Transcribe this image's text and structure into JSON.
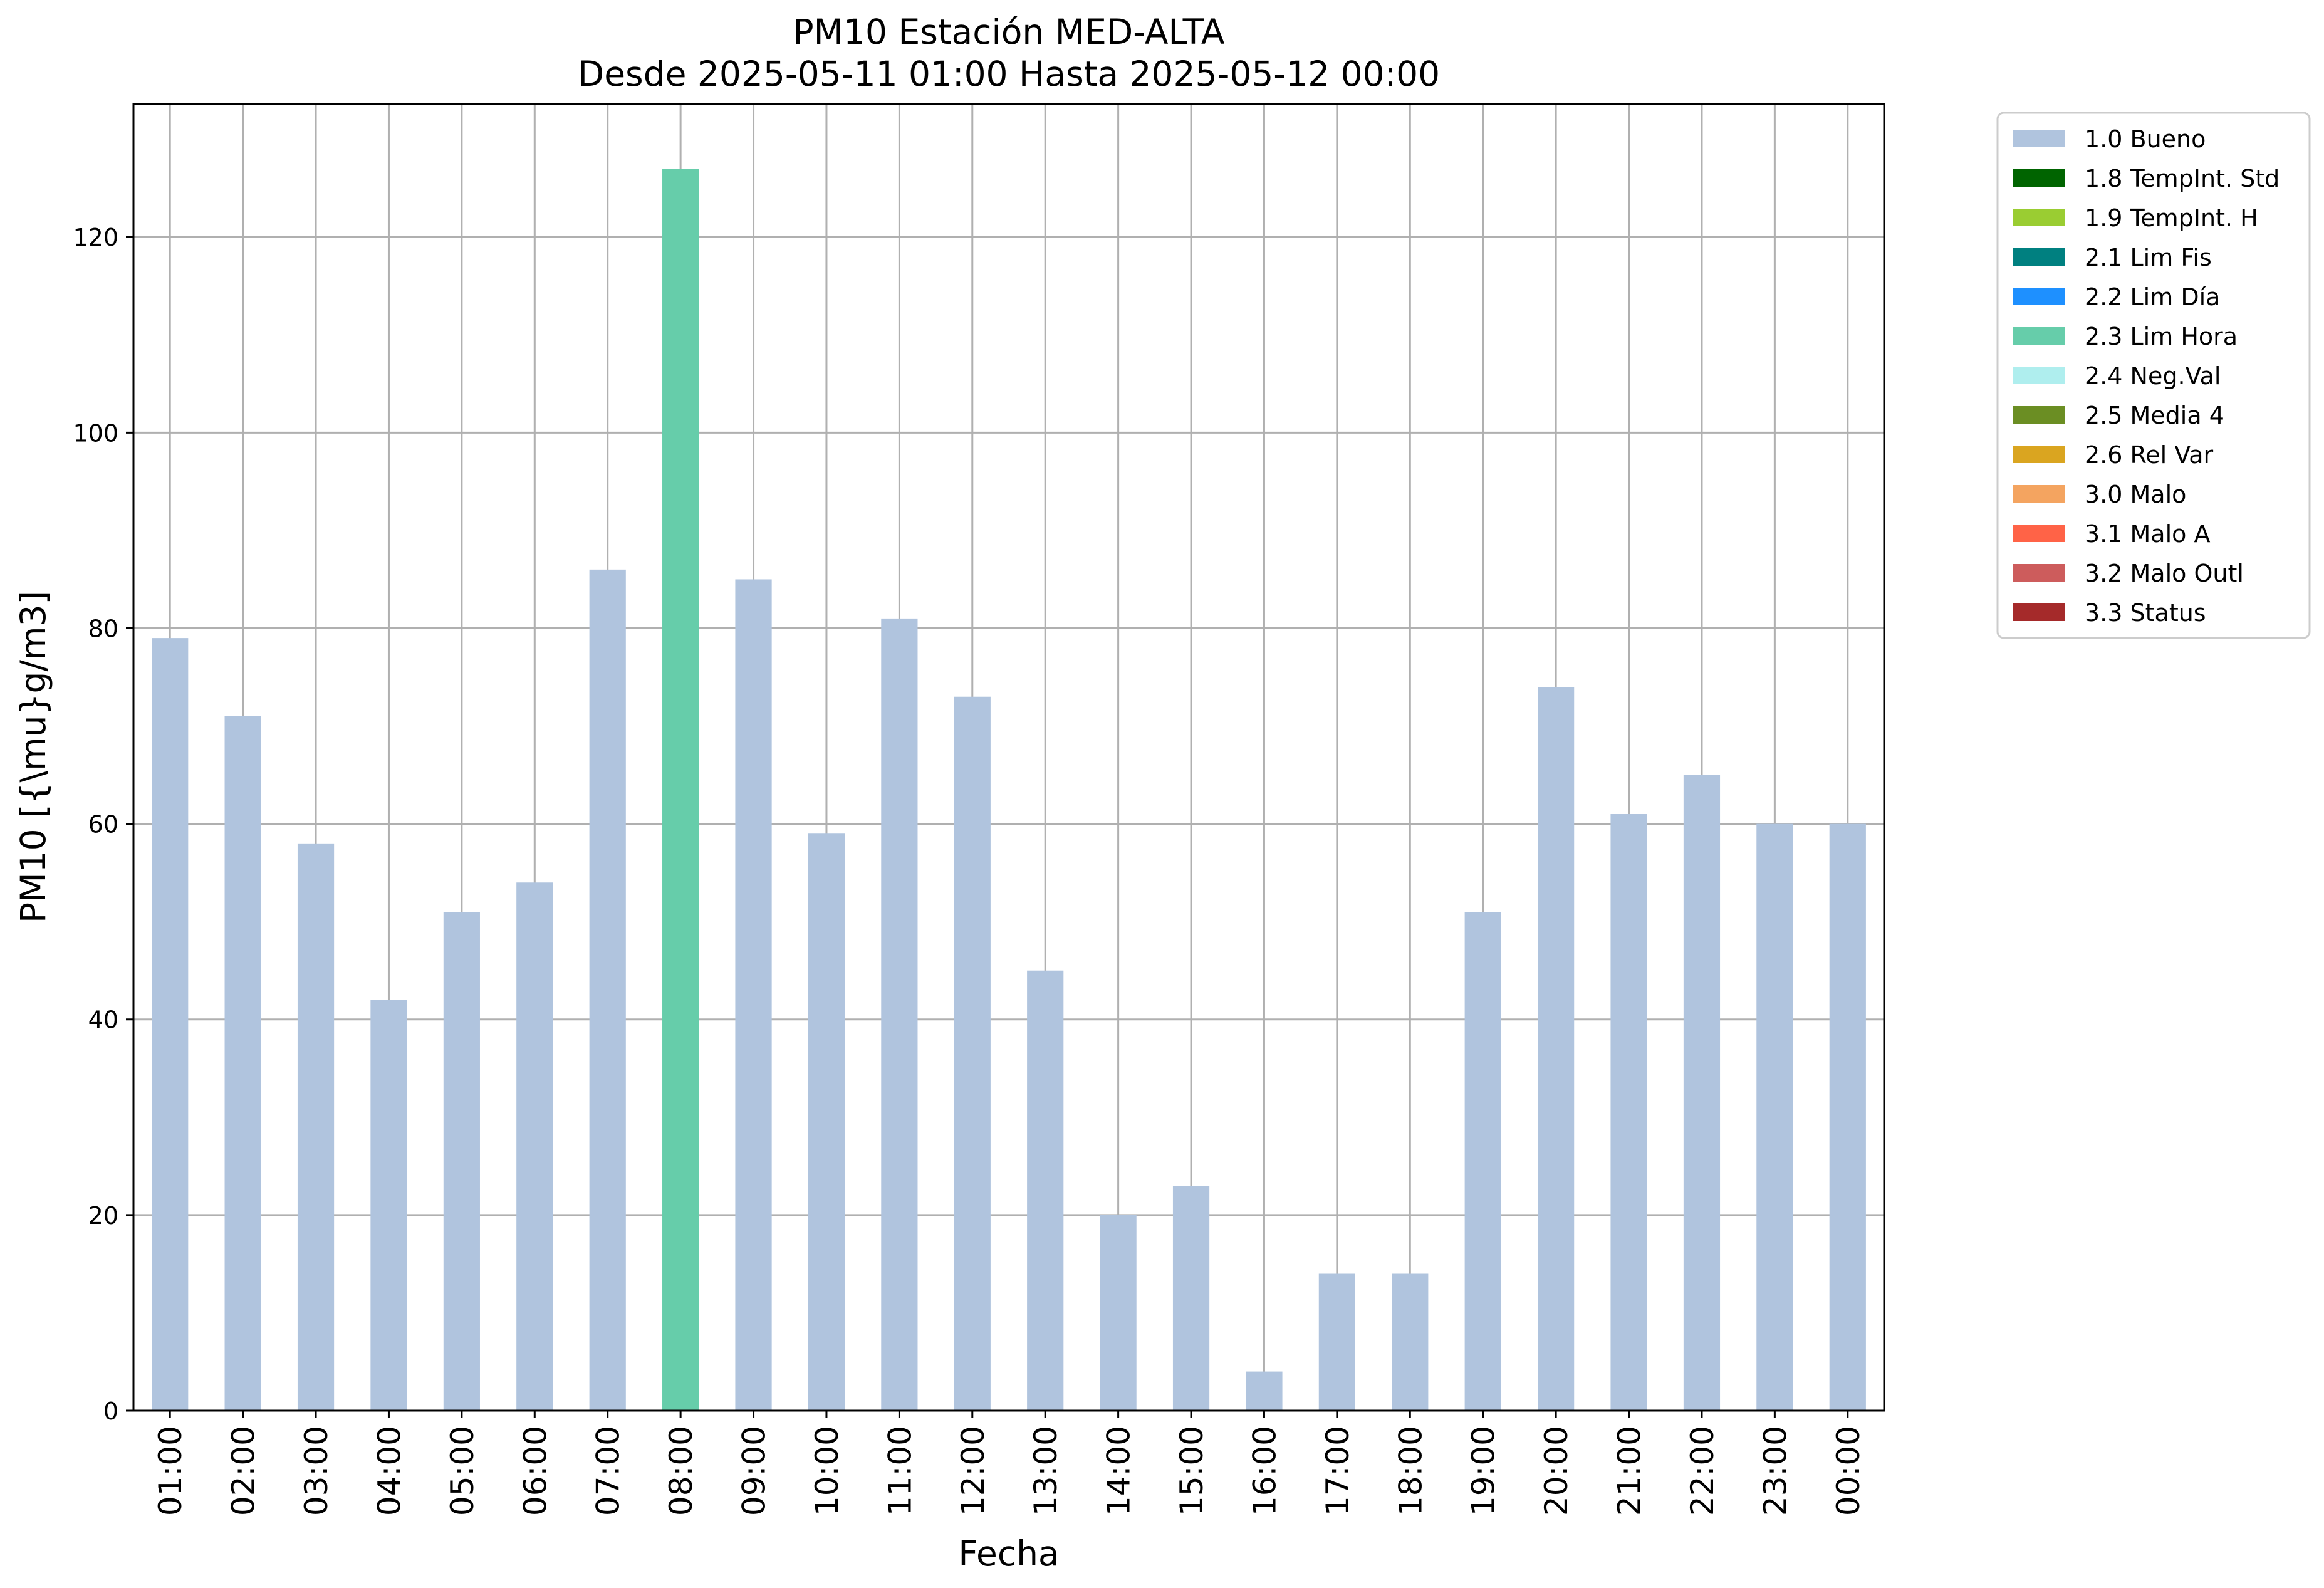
{
  "chart_data": {
    "type": "bar",
    "title": "PM10 Estación MED-ALTA",
    "subtitle": "Desde 2025-05-11 01:00 Hasta 2025-05-12 00:00",
    "xlabel": "Fecha",
    "ylabel": "PM10 [{\\mu}g/m3]",
    "ylim": [
      0,
      133.6
    ],
    "yticks": [
      0,
      20,
      40,
      60,
      80,
      100,
      120
    ],
    "grid": true,
    "legend_position": "outside-right-top",
    "categories": [
      "01:00",
      "02:00",
      "03:00",
      "04:00",
      "05:00",
      "06:00",
      "07:00",
      "08:00",
      "09:00",
      "10:00",
      "11:00",
      "12:00",
      "13:00",
      "14:00",
      "15:00",
      "16:00",
      "17:00",
      "18:00",
      "19:00",
      "20:00",
      "21:00",
      "22:00",
      "23:00",
      "00:00"
    ],
    "values": [
      79,
      71,
      58,
      42,
      51,
      54,
      86,
      127,
      85,
      59,
      81,
      73,
      45,
      20,
      23,
      4,
      14,
      14,
      51,
      74,
      61,
      65,
      60,
      60
    ],
    "flags": [
      "1.0 Bueno",
      "1.0 Bueno",
      "1.0 Bueno",
      "1.0 Bueno",
      "1.0 Bueno",
      "1.0 Bueno",
      "1.0 Bueno",
      "2.3 Lim Hora",
      "1.0 Bueno",
      "1.0 Bueno",
      "1.0 Bueno",
      "1.0 Bueno",
      "1.0 Bueno",
      "1.0 Bueno",
      "1.0 Bueno",
      "1.0 Bueno",
      "1.0 Bueno",
      "1.0 Bueno",
      "1.0 Bueno",
      "1.0 Bueno",
      "1.0 Bueno",
      "1.0 Bueno",
      "1.0 Bueno",
      "1.0 Bueno"
    ],
    "legend": [
      {
        "label": "1.0 Bueno",
        "color": "#b0c4de"
      },
      {
        "label": "1.8 TempInt. Std",
        "color": "#006400"
      },
      {
        "label": "1.9 TempInt. H",
        "color": "#9acd32"
      },
      {
        "label": "2.1 Lim Fis",
        "color": "#008080"
      },
      {
        "label": "2.2 Lim Día",
        "color": "#1e90ff"
      },
      {
        "label": "2.3 Lim Hora",
        "color": "#66cdaa"
      },
      {
        "label": "2.4 Neg.Val",
        "color": "#afeeee"
      },
      {
        "label": "2.5 Media 4",
        "color": "#6b8e23"
      },
      {
        "label": "2.6 Rel Var",
        "color": "#daa520"
      },
      {
        "label": "3.0 Malo",
        "color": "#f4a460"
      },
      {
        "label": "3.1 Malo A",
        "color": "#ff6347"
      },
      {
        "label": "3.2 Malo Outl",
        "color": "#cd5c5c"
      },
      {
        "label": "3.3 Status",
        "color": "#a52a2a"
      }
    ]
  }
}
